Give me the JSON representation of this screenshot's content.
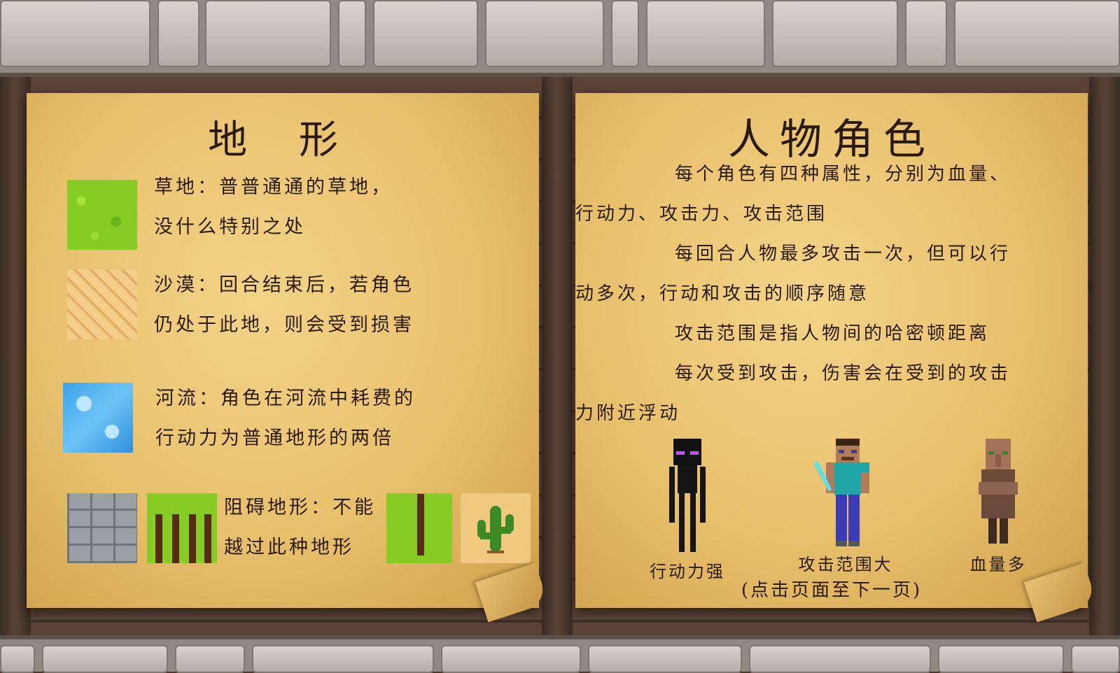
{
  "terrain_panel": {
    "title": "地 形",
    "grass": {
      "line1": "草地：普普通通的草地，",
      "line2": "没什么特别之处"
    },
    "desert": {
      "line1": "沙漠：回合结束后，若角色",
      "line2": "仍处于此地，则会受到损害"
    },
    "river": {
      "line1": "河流：角色在河流中耗费的",
      "line2": "行动力为普通地形的两倍"
    },
    "obstacle": {
      "line1": "阻碍地形：不能",
      "line2": "越过此种地形"
    }
  },
  "character_panel": {
    "title": "人物角色",
    "paragraphs": [
      [
        "每个角色有四种属性，分别为血量、",
        "行动力、攻击力、攻击范围"
      ],
      [
        "每回合人物最多攻击一次，但可以行",
        "动多次，行动和攻击的顺序随意"
      ],
      [
        "攻击范围是指人物间的哈密顿距离"
      ],
      [
        "每次受到攻击，伤害会在受到的攻击",
        "力附近浮动"
      ]
    ],
    "characters": [
      {
        "label": "行动力强",
        "icon": "enderman-icon"
      },
      {
        "label": "攻击范围大",
        "icon": "steve-icon"
      },
      {
        "label": "血量多",
        "icon": "villager-icon"
      }
    ],
    "hint": "(点击页面至下一页)"
  },
  "colors": {
    "parchment": "#e8c06c",
    "ink": "#2a1a0c",
    "grass": "#86cc25",
    "water": "#3ea4ea",
    "wood": "#5a4336",
    "stone": "#b3ada4"
  }
}
